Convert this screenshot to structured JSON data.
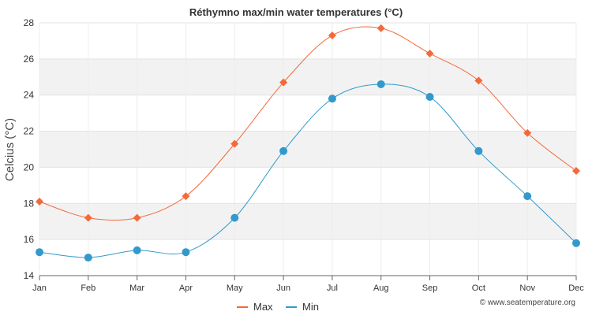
{
  "chart_data": {
    "type": "line",
    "title": "Réthymno max/min water temperatures (°C)",
    "ylabel": "Celcius (°C)",
    "xlabel": "",
    "categories": [
      "Jan",
      "Feb",
      "Mar",
      "Apr",
      "May",
      "Jun",
      "Jul",
      "Aug",
      "Sep",
      "Oct",
      "Nov",
      "Dec"
    ],
    "ylim": [
      14,
      28
    ],
    "yticks": [
      14,
      16,
      18,
      20,
      22,
      24,
      26,
      28
    ],
    "series": [
      {
        "name": "Max",
        "color": "#f4693a",
        "marker": "diamond",
        "values": [
          18.1,
          17.2,
          17.2,
          18.4,
          21.3,
          24.7,
          27.3,
          27.7,
          26.3,
          24.8,
          21.9,
          19.8
        ]
      },
      {
        "name": "Min",
        "color": "#3399cc",
        "marker": "circle",
        "values": [
          15.3,
          15.0,
          15.4,
          15.3,
          17.2,
          20.9,
          23.8,
          24.6,
          23.9,
          20.9,
          18.4,
          15.8
        ]
      }
    ],
    "legend_position": "bottom-center",
    "grid": true,
    "band_color": "#f2f2f2"
  },
  "credit": "© www.seatemperature.org"
}
